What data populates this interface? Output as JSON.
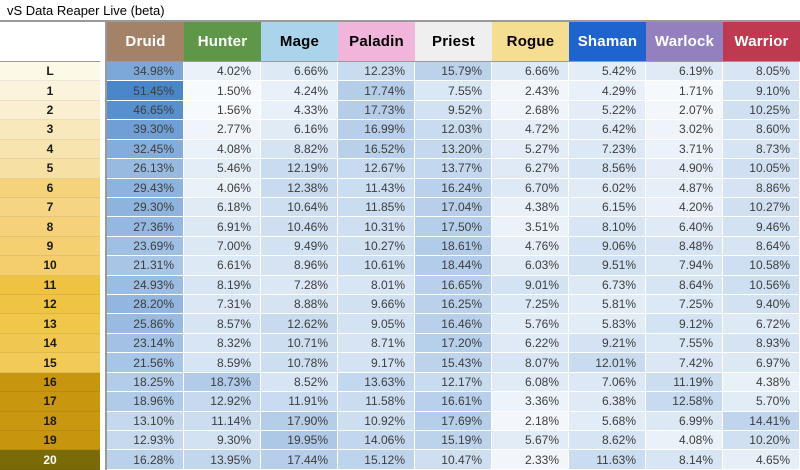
{
  "title": "vS Data Reaper Live (beta)",
  "chart_data": {
    "type": "heatmap-table",
    "title": "vS Data Reaper Live (beta)",
    "columns": [
      "Druid",
      "Hunter",
      "Mage",
      "Paladin",
      "Priest",
      "Rogue",
      "Shaman",
      "Warlock",
      "Warrior"
    ],
    "row_labels": [
      "L",
      "1",
      "2",
      "3",
      "4",
      "5",
      "6",
      "7",
      "8",
      "9",
      "10",
      "11",
      "12",
      "13",
      "14",
      "15",
      "16",
      "17",
      "18",
      "19",
      "20"
    ],
    "value_unit": "%",
    "values_percent": [
      [
        34.98,
        4.02,
        6.66,
        12.23,
        15.79,
        6.66,
        5.42,
        6.19,
        8.05
      ],
      [
        51.45,
        1.5,
        4.24,
        17.74,
        7.55,
        2.43,
        4.29,
        1.71,
        9.1
      ],
      [
        46.65,
        1.56,
        4.33,
        17.73,
        9.52,
        2.68,
        5.22,
        2.07,
        10.25
      ],
      [
        39.3,
        2.77,
        6.16,
        16.99,
        12.03,
        4.72,
        6.42,
        3.02,
        8.6
      ],
      [
        32.45,
        4.08,
        8.82,
        16.52,
        13.2,
        5.27,
        7.23,
        3.71,
        8.73
      ],
      [
        26.13,
        5.46,
        12.19,
        12.67,
        13.77,
        6.27,
        8.56,
        4.9,
        10.05
      ],
      [
        29.43,
        4.06,
        12.38,
        11.43,
        16.24,
        6.7,
        6.02,
        4.87,
        8.86
      ],
      [
        29.3,
        6.18,
        10.64,
        11.85,
        17.04,
        4.38,
        6.15,
        4.2,
        10.27
      ],
      [
        27.36,
        6.91,
        10.46,
        10.31,
        17.5,
        3.51,
        8.1,
        6.4,
        9.46
      ],
      [
        23.69,
        7.0,
        9.49,
        10.27,
        18.61,
        4.76,
        9.06,
        8.48,
        8.64
      ],
      [
        21.31,
        6.61,
        8.96,
        10.61,
        18.44,
        6.03,
        9.51,
        7.94,
        10.58
      ],
      [
        24.93,
        8.19,
        7.28,
        8.01,
        16.65,
        9.01,
        6.73,
        8.64,
        10.56
      ],
      [
        28.2,
        7.31,
        8.88,
        9.66,
        16.25,
        7.25,
        5.81,
        7.25,
        9.4
      ],
      [
        25.86,
        8.57,
        12.62,
        9.05,
        16.46,
        5.76,
        5.83,
        9.12,
        6.72
      ],
      [
        23.14,
        8.32,
        10.71,
        8.71,
        17.2,
        6.22,
        9.21,
        7.55,
        8.93
      ],
      [
        21.56,
        8.59,
        10.78,
        9.17,
        15.43,
        8.07,
        12.01,
        7.42,
        6.97
      ],
      [
        18.25,
        18.73,
        8.52,
        13.63,
        12.17,
        6.08,
        7.06,
        11.19,
        4.38
      ],
      [
        18.96,
        12.92,
        11.91,
        11.58,
        16.61,
        3.36,
        6.38,
        12.58,
        5.7
      ],
      [
        13.1,
        11.14,
        17.9,
        10.92,
        17.69,
        2.18,
        5.68,
        6.99,
        14.41
      ],
      [
        12.93,
        9.3,
        19.95,
        14.06,
        15.19,
        5.67,
        8.62,
        4.08,
        10.2
      ],
      [
        16.28,
        13.95,
        17.44,
        15.12,
        10.47,
        2.33,
        11.63,
        8.14,
        4.65
      ]
    ]
  },
  "styles": {
    "column_colors": [
      {
        "bg": "#A38268",
        "text": "#FFFFFF"
      },
      {
        "bg": "#5F9749",
        "text": "#FFFFFF"
      },
      {
        "bg": "#A9D4EB",
        "text": "#000000"
      },
      {
        "bg": "#F1B4DB",
        "text": "#000000"
      },
      {
        "bg": "#EFEFEF",
        "text": "#000000"
      },
      {
        "bg": "#F5DE92",
        "text": "#000000"
      },
      {
        "bg": "#1F63CF",
        "text": "#FFFFFF"
      },
      {
        "bg": "#9280BF",
        "text": "#FFFFFF"
      },
      {
        "bg": "#BE3A50",
        "text": "#FFFFFF"
      }
    ],
    "rank_colors": [
      "#FDF9E7",
      "#FBF3DB",
      "#FAEFD0",
      "#F8E8BB",
      "#F8E4AE",
      "#F7E0A3",
      "#F5D37B",
      "#F5D584",
      "#F5D27A",
      "#F4D073",
      "#F4CE6C",
      "#EFC241",
      "#EFC445",
      "#F0C64B",
      "#F0C851",
      "#F1CA58",
      "#C8950E",
      "#C8960F",
      "#C99710",
      "#C8960E",
      "#7B6B08"
    ],
    "rank_text_colors": [
      "#1A1A1A",
      "#1A1A1A",
      "#1A1A1A",
      "#1A1A1A",
      "#1A1A1A",
      "#1A1A1A",
      "#1A1A1A",
      "#1A1A1A",
      "#1A1A1A",
      "#1A1A1A",
      "#1A1A1A",
      "#1A1A1A",
      "#1A1A1A",
      "#1A1A1A",
      "#1A1A1A",
      "#1A1A1A",
      "#1A1A1A",
      "#1A1A1A",
      "#1A1A1A",
      "#1A1A1A",
      "#FFFFFF"
    ],
    "heatmap": {
      "low": "#F7FAFD",
      "high": "#4A86CA",
      "vmin": 1.5,
      "vmax": 51.5,
      "gamma": 0.85
    },
    "divider_color": "#9A9A9A"
  }
}
